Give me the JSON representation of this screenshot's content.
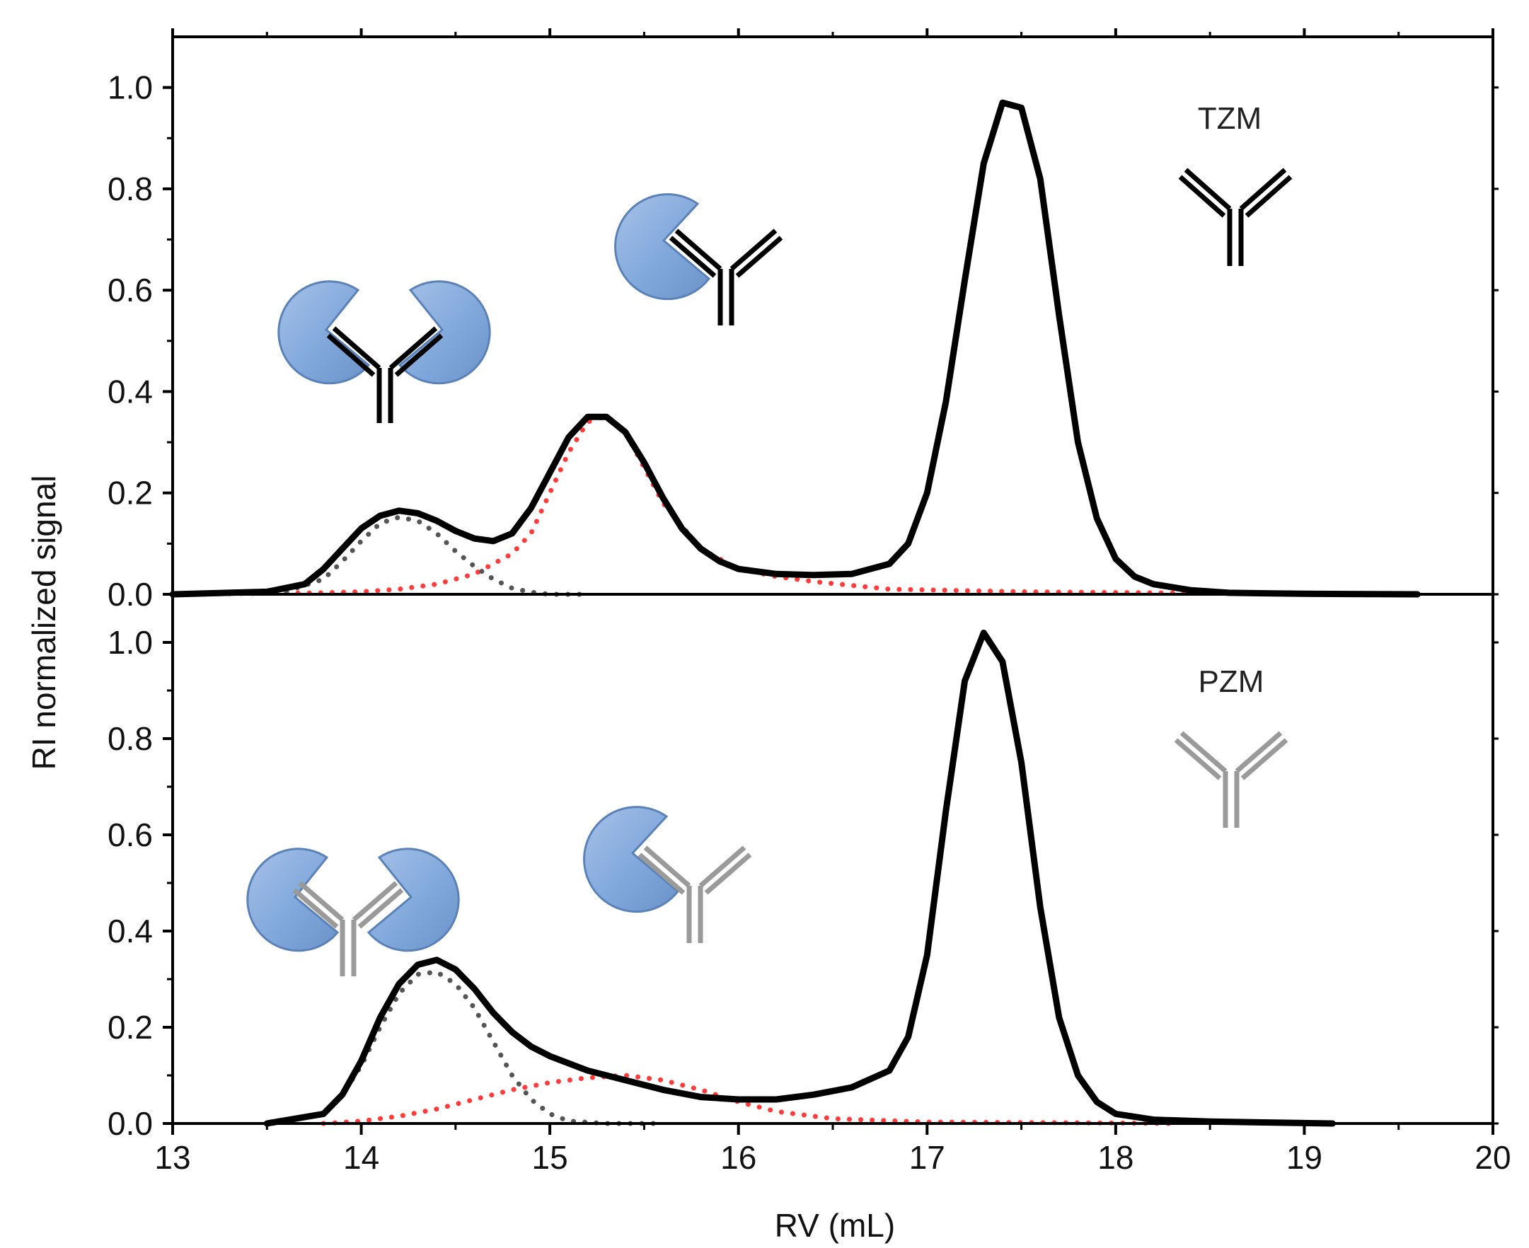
{
  "chart_data": {
    "type": "line",
    "xlabel": "RV (mL)",
    "ylabel": "RI normalized signal",
    "xlim": [
      13,
      20
    ],
    "x_ticks": [
      "13",
      "14",
      "15",
      "16",
      "17",
      "18",
      "19",
      "20"
    ],
    "y_ticks": [
      "0.0",
      "0.2",
      "0.4",
      "0.6",
      "0.8",
      "1.0"
    ],
    "colors": {
      "total": "#000000",
      "complex_2to1_fit": "#555555",
      "complex_1to1_fit": "#ff3b3b",
      "receptor": "#7ea6da",
      "antibody_tzm": "#000000",
      "antibody_pzm": "#9a9a9a"
    },
    "panels": [
      {
        "label": "TZM",
        "ylim": [
          0,
          1.1
        ],
        "series": [
          {
            "name": "RI signal",
            "style": "solid",
            "x": [
              13.0,
              13.5,
              13.7,
              13.8,
              13.9,
              14.0,
              14.1,
              14.2,
              14.3,
              14.4,
              14.5,
              14.6,
              14.7,
              14.8,
              14.9,
              15.0,
              15.1,
              15.2,
              15.3,
              15.4,
              15.5,
              15.6,
              15.7,
              15.8,
              15.9,
              16.0,
              16.2,
              16.4,
              16.6,
              16.8,
              16.9,
              17.0,
              17.1,
              17.2,
              17.3,
              17.4,
              17.5,
              17.6,
              17.7,
              17.8,
              17.9,
              18.0,
              18.1,
              18.2,
              18.4,
              18.6,
              19.0,
              19.6
            ],
            "y": [
              0.0,
              0.005,
              0.02,
              0.05,
              0.09,
              0.13,
              0.155,
              0.165,
              0.16,
              0.145,
              0.125,
              0.11,
              0.105,
              0.12,
              0.17,
              0.24,
              0.31,
              0.35,
              0.35,
              0.32,
              0.26,
              0.19,
              0.13,
              0.09,
              0.065,
              0.05,
              0.04,
              0.038,
              0.04,
              0.06,
              0.1,
              0.2,
              0.38,
              0.62,
              0.85,
              0.97,
              0.96,
              0.82,
              0.55,
              0.3,
              0.15,
              0.07,
              0.035,
              0.02,
              0.008,
              0.003,
              0.001,
              0.0
            ]
          },
          {
            "name": "Peak fit 1 (2:1 complex)",
            "style": "dotted",
            "x": [
              13.0,
              13.6,
              13.8,
              13.9,
              14.0,
              14.1,
              14.2,
              14.3,
              14.4,
              14.5,
              14.6,
              14.7,
              14.8,
              14.9,
              15.0,
              15.2
            ],
            "y": [
              0.0,
              0.005,
              0.03,
              0.065,
              0.105,
              0.14,
              0.152,
              0.145,
              0.12,
              0.085,
              0.055,
              0.03,
              0.012,
              0.004,
              0.0,
              0.0
            ]
          },
          {
            "name": "Peak fit 2 (1:1 complex)",
            "style": "dotted",
            "x": [
              13.0,
              13.8,
              14.0,
              14.2,
              14.4,
              14.6,
              14.8,
              14.9,
              15.0,
              15.1,
              15.2,
              15.3,
              15.4,
              15.5,
              15.6,
              15.8,
              16.0,
              16.2,
              16.4,
              16.8,
              17.5,
              18.5,
              19.6
            ],
            "y": [
              0.0,
              0.003,
              0.005,
              0.01,
              0.02,
              0.04,
              0.08,
              0.12,
              0.2,
              0.28,
              0.34,
              0.352,
              0.32,
              0.25,
              0.18,
              0.09,
              0.05,
              0.035,
              0.025,
              0.01,
              0.005,
              0.002,
              0.0
            ]
          }
        ]
      },
      {
        "label": "PZM",
        "ylim": [
          0,
          1.1
        ],
        "series": [
          {
            "name": "RI signal",
            "style": "solid",
            "x": [
              13.5,
              13.8,
              13.9,
              14.0,
              14.1,
              14.2,
              14.3,
              14.4,
              14.5,
              14.6,
              14.7,
              14.8,
              14.9,
              15.0,
              15.2,
              15.4,
              15.6,
              15.8,
              16.0,
              16.2,
              16.4,
              16.6,
              16.8,
              16.9,
              17.0,
              17.1,
              17.2,
              17.3,
              17.4,
              17.5,
              17.6,
              17.7,
              17.8,
              17.9,
              18.0,
              18.2,
              18.5,
              19.15
            ],
            "y": [
              0.0,
              0.02,
              0.06,
              0.13,
              0.22,
              0.29,
              0.33,
              0.34,
              0.32,
              0.28,
              0.23,
              0.19,
              0.16,
              0.14,
              0.11,
              0.09,
              0.07,
              0.055,
              0.05,
              0.05,
              0.06,
              0.075,
              0.11,
              0.18,
              0.35,
              0.65,
              0.92,
              1.02,
              0.96,
              0.75,
              0.45,
              0.22,
              0.1,
              0.045,
              0.02,
              0.008,
              0.004,
              0.0
            ]
          },
          {
            "name": "Peak fit 1 (2:1 complex)",
            "style": "dotted",
            "x": [
              13.5,
              13.8,
              13.9,
              14.0,
              14.1,
              14.2,
              14.3,
              14.4,
              14.5,
              14.6,
              14.7,
              14.8,
              14.9,
              15.0,
              15.1,
              15.3,
              15.6
            ],
            "y": [
              0.0,
              0.02,
              0.06,
              0.12,
              0.2,
              0.27,
              0.31,
              0.315,
              0.29,
              0.24,
              0.17,
              0.1,
              0.05,
              0.02,
              0.005,
              0.0,
              0.0
            ]
          },
          {
            "name": "Peak fit 2 (1:1 complex)",
            "style": "dotted",
            "x": [
              13.8,
              14.0,
              14.2,
              14.4,
              14.6,
              14.8,
              15.0,
              15.2,
              15.4,
              15.6,
              15.8,
              16.0,
              16.2,
              16.5,
              17.0,
              18.0,
              18.3
            ],
            "y": [
              0.0,
              0.005,
              0.015,
              0.03,
              0.05,
              0.07,
              0.085,
              0.095,
              0.1,
              0.09,
              0.07,
              0.045,
              0.025,
              0.01,
              0.003,
              0.001,
              0.0
            ]
          }
        ]
      }
    ]
  }
}
